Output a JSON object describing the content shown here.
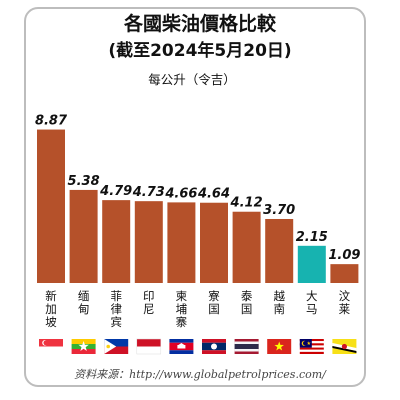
{
  "chart_data": {
    "type": "bar",
    "title": "各國柴油價格比較",
    "subtitle": "(截至2024年5月20日)",
    "unit_label": "每公升（令吉）",
    "categories": [
      "新加坡",
      "缅甸",
      "菲律宾",
      "印尼",
      "柬埔寨",
      "寮国",
      "泰国",
      "越南",
      "大马",
      "汶莱"
    ],
    "values": [
      8.87,
      5.38,
      4.79,
      4.73,
      4.66,
      4.64,
      4.12,
      3.7,
      2.15,
      1.09
    ],
    "value_labels": [
      "8.87",
      "5.38",
      "4.79",
      "4.73",
      "4.66",
      "4.64",
      "4.12",
      "3.70",
      "2.15",
      "1.09"
    ],
    "ylim": [
      0,
      10
    ],
    "grid": false,
    "legend": "none",
    "bar_color": "#b5512a",
    "highlight_color": "#17b3b0",
    "highlight_index": 8,
    "flags": [
      "singapore-flag-icon",
      "myanmar-flag-icon",
      "philippines-flag-icon",
      "indonesia-flag-icon",
      "cambodia-flag-icon",
      "laos-flag-icon",
      "thailand-flag-icon",
      "vietnam-flag-icon",
      "malaysia-flag-icon",
      "brunei-flag-icon"
    ]
  },
  "source": "资料来源：http://www.globalpetrolprices.com/"
}
